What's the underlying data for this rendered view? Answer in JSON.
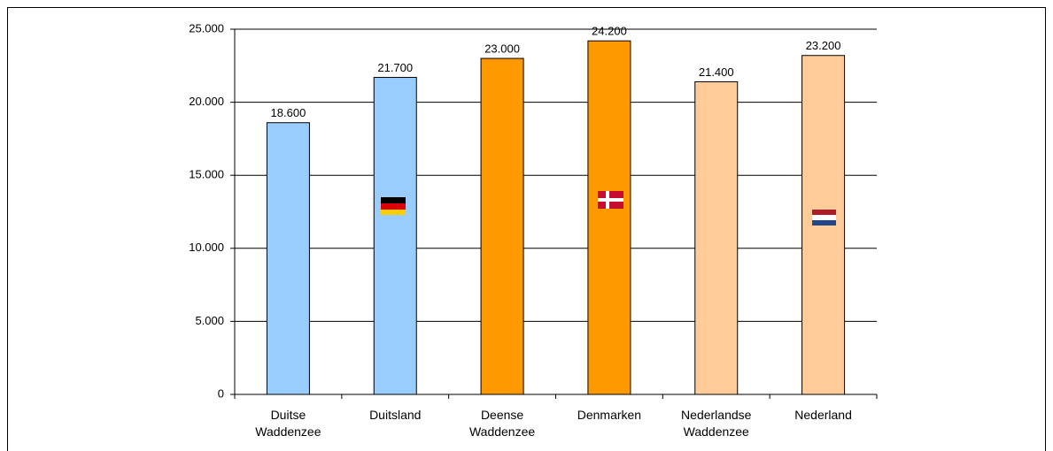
{
  "chart_data": {
    "type": "bar",
    "categories": [
      "Duitse Waddenzee",
      "Duitsland",
      "Deense Waddenzee",
      "Denmarken",
      "Nederlandse Waddenzee",
      "Nederland"
    ],
    "values": [
      18600,
      21700,
      23000,
      24200,
      21400,
      23200
    ],
    "value_labels": [
      "18.600",
      "21.700",
      "23.000",
      "24.200",
      "21.400",
      "23.200"
    ],
    "colors": [
      "#99ccff",
      "#99ccff",
      "#ff9900",
      "#ff9900",
      "#ffcc99",
      "#ffcc99"
    ],
    "ylim": [
      0,
      25000
    ],
    "yticks": [
      0,
      {
        "value": 5000,
        "label": "5.000"
      },
      {
        "value": 10000,
        "label": "10.000"
      },
      {
        "value": 15000,
        "label": "15.000"
      },
      {
        "value": 20000,
        "label": "20.000"
      },
      {
        "value": 25000,
        "label": "25.000"
      }
    ],
    "grid": true
  }
}
